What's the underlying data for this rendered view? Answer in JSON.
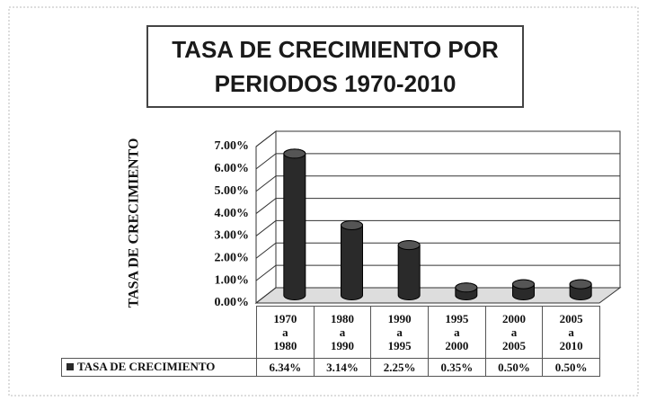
{
  "chart_data": {
    "type": "bar",
    "title": "TASA DE CRECIMIENTO POR PERIODOS 1970-2010",
    "y_label": "TASA DE CRECIMIENTO",
    "categories": [
      "1970 a 1980",
      "1980 a 1990",
      "1990 a 1995",
      "1995 a 2000",
      "2000 a 2005",
      "2005 a 2010"
    ],
    "series": [
      {
        "name": "TASA DE CRECIMIENTO",
        "color": "#2a2a2a",
        "values": [
          6.34,
          3.14,
          2.25,
          0.35,
          0.5,
          0.5
        ],
        "value_labels": [
          "6.34%",
          "3.14%",
          "2.25%",
          "0.35%",
          "0.50%",
          "0.50%"
        ]
      }
    ],
    "ylim": [
      0,
      7
    ],
    "yticks": [
      {
        "value": 0,
        "label": "0.00%"
      },
      {
        "value": 1,
        "label": "1.00%"
      },
      {
        "value": 2,
        "label": "2.00%"
      },
      {
        "value": 3,
        "label": "3.00%"
      },
      {
        "value": 4,
        "label": "4.00%"
      },
      {
        "value": 5,
        "label": "5.00%"
      },
      {
        "value": 6,
        "label": "6.00%"
      },
      {
        "value": 7,
        "label": "7.00%"
      }
    ],
    "grid": true
  }
}
